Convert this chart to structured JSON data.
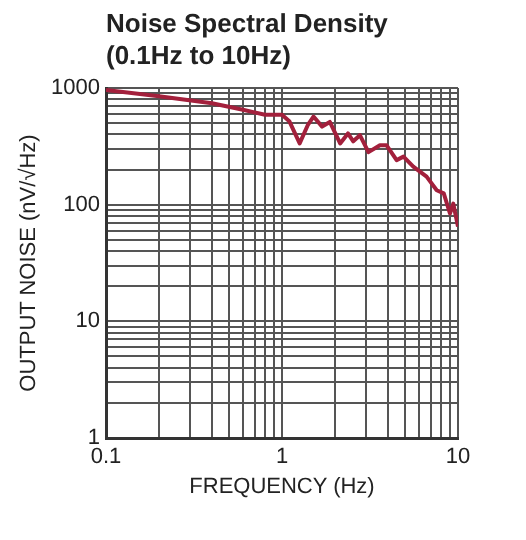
{
  "chart_data": {
    "type": "line",
    "title": "Noise Spectral Density\n(0.1Hz to 10Hz)",
    "xlabel": "FREQUENCY (Hz)",
    "ylabel": "OUTPUT NOISE (nV/√Hz)",
    "log": "xy",
    "grid": true,
    "legend": false,
    "marker": "none",
    "line_style": "solid",
    "xlim": [
      0.1,
      10
    ],
    "ylim": [
      1,
      1000
    ],
    "xticks": [
      0.1,
      {
        "value": 0.2,
        "label": null
      },
      {
        "value": 0.3,
        "label": null
      },
      {
        "value": 0.4,
        "label": null
      },
      {
        "value": 0.5,
        "label": null
      },
      {
        "value": 0.6,
        "label": null
      },
      {
        "value": 0.7,
        "label": null
      },
      {
        "value": 0.8,
        "label": null
      },
      {
        "value": 0.9,
        "label": null
      },
      1,
      {
        "value": 2,
        "label": null
      },
      {
        "value": 3,
        "label": null
      },
      {
        "value": 4,
        "label": null
      },
      {
        "value": 5,
        "label": null
      },
      {
        "value": 6,
        "label": null
      },
      {
        "value": 7,
        "label": null
      },
      {
        "value": 8,
        "label": null
      },
      {
        "value": 9,
        "label": null
      },
      10
    ],
    "yticks": [
      1,
      {
        "value": 2,
        "label": null
      },
      {
        "value": 3,
        "label": null
      },
      {
        "value": 4,
        "label": null
      },
      {
        "value": 5,
        "label": null
      },
      {
        "value": 6,
        "label": null
      },
      {
        "value": 7,
        "label": null
      },
      {
        "value": 8,
        "label": null
      },
      {
        "value": 9,
        "label": null
      },
      10,
      {
        "value": 20,
        "label": null
      },
      {
        "value": 30,
        "label": null
      },
      {
        "value": 40,
        "label": null
      },
      {
        "value": 50,
        "label": null
      },
      {
        "value": 60,
        "label": null
      },
      {
        "value": 70,
        "label": null
      },
      {
        "value": 80,
        "label": null
      },
      {
        "value": 90,
        "label": null
      },
      100,
      {
        "value": 200,
        "label": null
      },
      {
        "value": 300,
        "label": null
      },
      {
        "value": 400,
        "label": null
      },
      {
        "value": 500,
        "label": null
      },
      {
        "value": 600,
        "label": null
      },
      {
        "value": 700,
        "label": null
      },
      {
        "value": 800,
        "label": null
      },
      {
        "value": 900,
        "label": null
      },
      1000
    ],
    "series": [
      {
        "color": "#a3203c",
        "x": [
          0.1,
          0.2,
          0.4,
          0.6,
          0.8,
          1.0,
          1.1,
          1.26,
          1.4,
          1.51,
          1.69,
          1.87,
          2.14,
          2.37,
          2.54,
          2.77,
          3.1,
          3.6,
          3.93,
          4.48,
          4.9,
          5.57,
          6.63,
          7.57,
          8.3,
          9.0,
          9.4,
          10
        ],
        "values": [
          960,
          850,
          740,
          650,
          590,
          590,
          520,
          335,
          480,
          569,
          467,
          512,
          335,
          408,
          349,
          394,
          282,
          323,
          323,
          241,
          258,
          212,
          174,
          133,
          125,
          84,
          102,
          65
        ]
      }
    ]
  }
}
